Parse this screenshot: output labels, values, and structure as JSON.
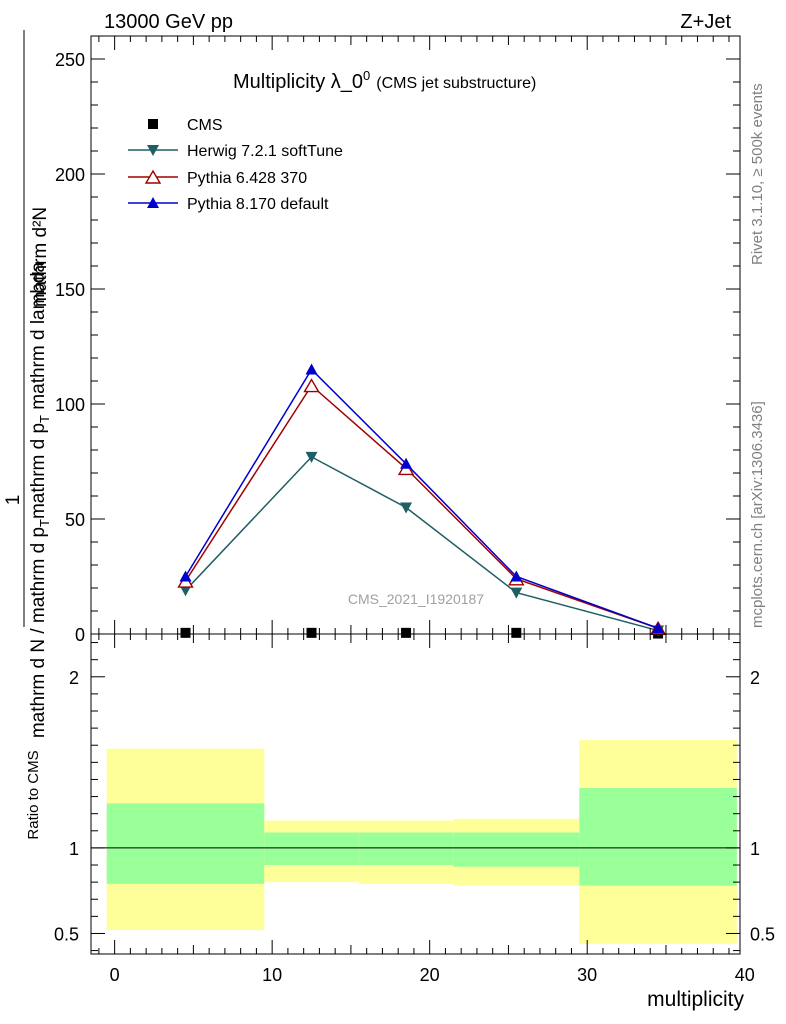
{
  "header": {
    "left": "13000 GeV pp",
    "right": "Z+Jet"
  },
  "side_labels": {
    "rivet": "Rivet 3.1.10, ≥ 500k events",
    "mcplots": "mcplots.cern.ch [arXiv:1306.3436]"
  },
  "colors": {
    "cms": "#000000",
    "herwig": "#1f5f63",
    "pythia6": "#a00000",
    "pythia8": "#0000cc",
    "band_outer": "#ffff99",
    "band_inner": "#99ff99"
  },
  "chart_data": [
    {
      "type": "line",
      "title_main": "Multiplicity λ_0",
      "title_sup": "0",
      "title_sub": "(CMS jet substructure)",
      "watermark": "CMS_2021_I1920187",
      "ylabel": {
        "num": "mathrm d²N",
        "den_top": "mathrm d p",
        "den_top_sub": "T",
        "den_top_rest": " mathrm d lambda",
        "num2_top": "mathrm d p",
        "num2_sub": "T",
        "num2_rest": " mathrm d lambda",
        "frac_num": "1",
        "frac_den": "mathrm d N / mathrm d p",
        "frac_den_sub": "T"
      },
      "ylabel_lines": [
        "mathrm d²N",
        "mathrm d p_T mathrm d lambda",
        "1",
        "mathrm d N / mathrm d p_T"
      ],
      "ylim": [
        0,
        260
      ],
      "yticks": [
        0,
        50,
        100,
        150,
        200,
        250
      ],
      "xlim": [
        -1.5,
        39.7
      ],
      "legend": [
        {
          "key": "cms",
          "label": "CMS",
          "marker": "square"
        },
        {
          "key": "herwig",
          "label": "Herwig 7.2.1 softTune",
          "marker": "tri-down"
        },
        {
          "key": "pythia6",
          "label": "Pythia 6.428 370",
          "marker": "tri-up-open"
        },
        {
          "key": "pythia8",
          "label": "Pythia 8.170 default",
          "marker": "tri-up"
        }
      ],
      "series": [
        {
          "key": "cms",
          "name": "CMS",
          "x": [
            4.5,
            12.5,
            18.5,
            25.5,
            34.5
          ],
          "values": [
            0.5,
            0.5,
            0.5,
            0.5,
            0.2
          ]
        },
        {
          "key": "herwig",
          "name": "Herwig 7.2.1 softTune",
          "x": [
            4.5,
            12.5,
            18.5,
            25.5,
            34.5
          ],
          "values": [
            19,
            77,
            55,
            18,
            1.5
          ]
        },
        {
          "key": "pythia6",
          "name": "Pythia 6.428 370",
          "x": [
            4.5,
            12.5,
            18.5,
            25.5,
            34.5
          ],
          "values": [
            23,
            108,
            72,
            24,
            2.5
          ]
        },
        {
          "key": "pythia8",
          "name": "Pythia 8.170 default",
          "x": [
            4.5,
            12.5,
            18.5,
            25.5,
            34.5
          ],
          "values": [
            25,
            115,
            74,
            25,
            2.5
          ]
        }
      ]
    },
    {
      "type": "area",
      "ylabel": "Ratio to CMS",
      "xlabel": "multiplicity",
      "ylim": [
        0.38,
        2.25
      ],
      "yticks": [
        0.5,
        1,
        2
      ],
      "ytick_labels": [
        "0.5",
        "1",
        "2"
      ],
      "xlim": [
        -1.5,
        39.7
      ],
      "xticks": [
        0,
        10,
        20,
        30,
        40
      ],
      "reference": 1,
      "bins": [
        {
          "x0": -0.5,
          "x1": 9.5,
          "outer": [
            0.52,
            1.58
          ],
          "inner": [
            0.79,
            1.26
          ]
        },
        {
          "x0": 9.5,
          "x1": 15.5,
          "outer": [
            0.8,
            1.16
          ],
          "inner": [
            0.9,
            1.09
          ]
        },
        {
          "x0": 15.5,
          "x1": 21.5,
          "outer": [
            0.79,
            1.16
          ],
          "inner": [
            0.9,
            1.09
          ]
        },
        {
          "x0": 21.5,
          "x1": 29.5,
          "outer": [
            0.78,
            1.17
          ],
          "inner": [
            0.89,
            1.09
          ]
        },
        {
          "x0": 29.5,
          "x1": 39.5,
          "outer": [
            0.44,
            1.63
          ],
          "inner": [
            0.78,
            1.35
          ]
        }
      ]
    }
  ]
}
